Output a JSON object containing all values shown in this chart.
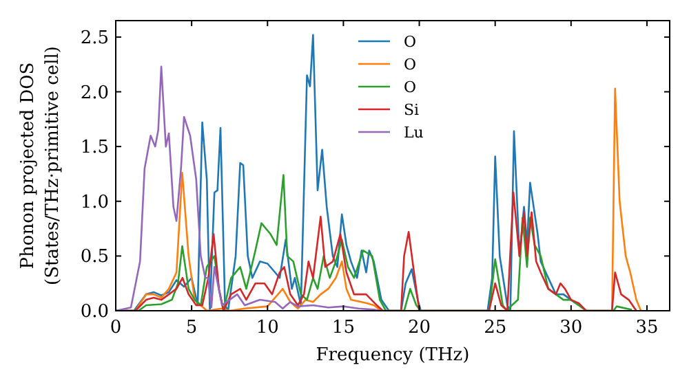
{
  "chart_data": {
    "type": "line",
    "xlabel": "Frequency (THz)",
    "ylabel": "Phonon projected DOS\n(States/THz·primitive cell)",
    "xlim": [
      0,
      36.5
    ],
    "ylim": [
      0,
      2.65
    ],
    "xticks": [
      0,
      5,
      10,
      15,
      20,
      25,
      30,
      35
    ],
    "yticks": [
      {
        "value": 0,
        "label": "0.0"
      },
      {
        "value": 0.5,
        "label": "0.5"
      },
      {
        "value": 1,
        "label": "1.0"
      },
      {
        "value": 1.5,
        "label": "1.5"
      },
      {
        "value": 2,
        "label": "2.0"
      },
      {
        "value": 2.5,
        "label": "2.5"
      }
    ],
    "grid": false,
    "legend": "top",
    "marker": "none",
    "line_style": "solid",
    "series": [
      {
        "name": "O",
        "color": "#1f77b4",
        "x": [
          0,
          1.2,
          2,
          2.5,
          3,
          3.5,
          4,
          4.5,
          5,
          5.4,
          5.7,
          6.0,
          6.2,
          6.5,
          6.7,
          6.9,
          7.2,
          7.4,
          7.7,
          7.9,
          8.2,
          8.4,
          8.7,
          9.0,
          9.5,
          10.0,
          10.5,
          10.8,
          11.2,
          11.6,
          11.8,
          12.2,
          12.6,
          12.8,
          13.0,
          13.3,
          13.6,
          13.9,
          14.3,
          14.6,
          14.9,
          15.2,
          15.5,
          15.9,
          16.2,
          16.5,
          16.7,
          17.0,
          17.5,
          18.0,
          18.8,
          19.1,
          19.5,
          19.9,
          20.1,
          24.5,
          24.8,
          25.0,
          25.3,
          25.8,
          26.0,
          26.24,
          26.6,
          26.9,
          27.1,
          27.3,
          27.8,
          28.0,
          28.5,
          29.0,
          29.5,
          30.0,
          30.5
        ],
        "values": [
          0,
          0,
          0.15,
          0.17,
          0.14,
          0.17,
          0.28,
          0.22,
          0.3,
          0.05,
          1.72,
          1.2,
          0,
          1.08,
          1.1,
          1.67,
          0.05,
          0,
          0.3,
          0.5,
          1.35,
          1.33,
          0.5,
          0.3,
          0.45,
          0.43,
          0.35,
          0.3,
          0.65,
          0.2,
          0.3,
          0.05,
          2.15,
          2.05,
          2.52,
          1.1,
          1.47,
          0.95,
          0.5,
          0.4,
          0.88,
          0.6,
          0.45,
          0.3,
          0.55,
          0.35,
          0.55,
          0.45,
          0.1,
          0,
          0,
          0.25,
          0.38,
          0.1,
          0,
          0,
          0.3,
          1.41,
          0.5,
          0.05,
          0,
          1.64,
          0.5,
          0.95,
          0.6,
          1.17,
          0.7,
          0.45,
          0.3,
          0.15,
          0.15,
          0.1,
          0.05
        ]
      },
      {
        "name": "O",
        "color": "#ff7f0e",
        "x": [
          0,
          1.3,
          2,
          2.5,
          3,
          3.5,
          4.0,
          4.38,
          4.8,
          5.2,
          5.6,
          6.0,
          7.0,
          7.5,
          8.5,
          10.0,
          11.0,
          11.5,
          12.0,
          12.5,
          13.0,
          13.5,
          14.0,
          14.5,
          14.9,
          15.2,
          15.5,
          16.5,
          17.0,
          17.5,
          32.7,
          32.9,
          33.2,
          33.6,
          33.9,
          34.3,
          34.6
        ],
        "values": [
          0,
          0,
          0.15,
          0.15,
          0.12,
          0.2,
          0.35,
          1.26,
          0.5,
          0.1,
          0.05,
          0,
          0.02,
          0,
          0.02,
          0.04,
          0.2,
          0.08,
          0.02,
          0.1,
          0.08,
          0.15,
          0.2,
          0.3,
          0.45,
          0.2,
          0.1,
          0.07,
          0.05,
          0,
          0,
          2.03,
          1.0,
          0.5,
          0.35,
          0.1,
          0
        ]
      },
      {
        "name": "O",
        "color": "#2ca02c",
        "x": [
          0,
          1.5,
          2,
          3,
          3.7,
          4.1,
          4.38,
          4.8,
          5.2,
          5.6,
          6.0,
          6.5,
          6.8,
          7.1,
          7.6,
          8.2,
          8.6,
          9.2,
          9.6,
          10.2,
          10.6,
          11.05,
          11.3,
          11.7,
          12.2,
          12.6,
          13.0,
          13.3,
          13.7,
          14.1,
          14.5,
          14.9,
          15.3,
          15.7,
          16.3,
          16.9,
          17.4,
          17.8,
          19.0,
          19.4,
          19.8,
          20.1,
          24.6,
          25.0,
          25.5,
          25.8,
          26.1,
          26.5,
          26.8,
          27.1,
          27.3,
          27.6,
          28.0,
          28.5,
          29.0,
          29.5,
          30.0,
          30.5,
          31.0,
          32.8,
          33.0,
          34.0
        ],
        "values": [
          0,
          0,
          0.05,
          0.06,
          0.1,
          0.25,
          0.59,
          0.2,
          0.1,
          0.05,
          0.4,
          0.5,
          0.2,
          0,
          0.3,
          0.4,
          0.2,
          0.55,
          0.8,
          0.7,
          0.6,
          1.24,
          0.5,
          0.45,
          0.15,
          0.1,
          0.3,
          0.2,
          0.5,
          0.3,
          0.45,
          0.65,
          0.4,
          0.3,
          0.55,
          0.5,
          0.1,
          0,
          0,
          0.2,
          0.05,
          0,
          0,
          0.47,
          0.05,
          0,
          0.05,
          0.1,
          0.85,
          0.4,
          0.85,
          0.6,
          0.5,
          0.2,
          0.15,
          0.1,
          0.1,
          0.05,
          0,
          0,
          0.04,
          0.01
        ]
      },
      {
        "name": "Si",
        "color": "#d62728",
        "x": [
          0,
          1.3,
          2,
          2.5,
          3,
          3.5,
          4.0,
          4.4,
          4.8,
          5.3,
          5.7,
          6.1,
          6.45,
          6.8,
          7.1,
          7.6,
          8.2,
          8.6,
          9.2,
          9.8,
          10.3,
          10.8,
          11.1,
          11.5,
          12.0,
          12.4,
          12.7,
          13.0,
          13.5,
          13.8,
          14.3,
          14.8,
          15.2,
          15.7,
          16.5,
          17.2,
          17.6,
          18.8,
          19.0,
          19.3,
          19.7,
          20.0,
          24.6,
          25.0,
          25.4,
          25.8,
          26.2,
          26.6,
          26.9,
          27.1,
          27.4,
          27.7,
          28.0,
          28.5,
          29.0,
          29.3,
          29.6,
          30.0,
          30.5,
          31.0,
          32.7,
          32.9,
          33.3,
          33.8,
          34.3
        ],
        "values": [
          0,
          0,
          0.1,
          0.12,
          0.1,
          0.15,
          0.2,
          0.3,
          0.15,
          0.05,
          0.05,
          0.3,
          0.7,
          0.2,
          0,
          0.15,
          0.2,
          0.1,
          0.25,
          0.25,
          0.15,
          0.35,
          0.4,
          0.15,
          0.05,
          0.15,
          0.45,
          0.3,
          0.86,
          0.4,
          0.45,
          0.7,
          0.35,
          0.15,
          0.15,
          0.05,
          0,
          0,
          0.5,
          0.72,
          0.3,
          0,
          0,
          0.25,
          0.05,
          0,
          1.08,
          0.5,
          0.9,
          0.5,
          0.9,
          0.45,
          0.35,
          0.2,
          0.15,
          0.25,
          0.2,
          0.1,
          0.07,
          0,
          0,
          0.35,
          0.15,
          0.1,
          0
        ]
      },
      {
        "name": "Lu",
        "color": "#9467bd",
        "x": [
          0,
          1.0,
          1.6,
          1.9,
          2.3,
          2.6,
          2.8,
          3.0,
          3.3,
          3.5,
          3.8,
          4.0,
          4.3,
          4.5,
          4.9,
          5.3,
          5.6,
          5.9,
          6.1,
          6.3,
          6.5,
          7.0,
          7.5,
          8.0,
          8.5,
          9.5,
          10.5,
          11.0,
          11.5,
          12.0,
          13.0,
          14.0,
          15.0,
          16.0,
          17.0,
          17.5
        ],
        "values": [
          0,
          0.03,
          0.45,
          1.3,
          1.6,
          1.5,
          1.65,
          2.23,
          1.5,
          1.62,
          0.95,
          0.82,
          1.3,
          1.77,
          1.6,
          1.2,
          0.5,
          0.3,
          0.3,
          0.03,
          0.4,
          0.05,
          0.1,
          0.15,
          0.05,
          0.1,
          0.08,
          0.02,
          0.08,
          0.04,
          0.05,
          0.03,
          0.04,
          0.02,
          0.01,
          0
        ]
      }
    ]
  }
}
